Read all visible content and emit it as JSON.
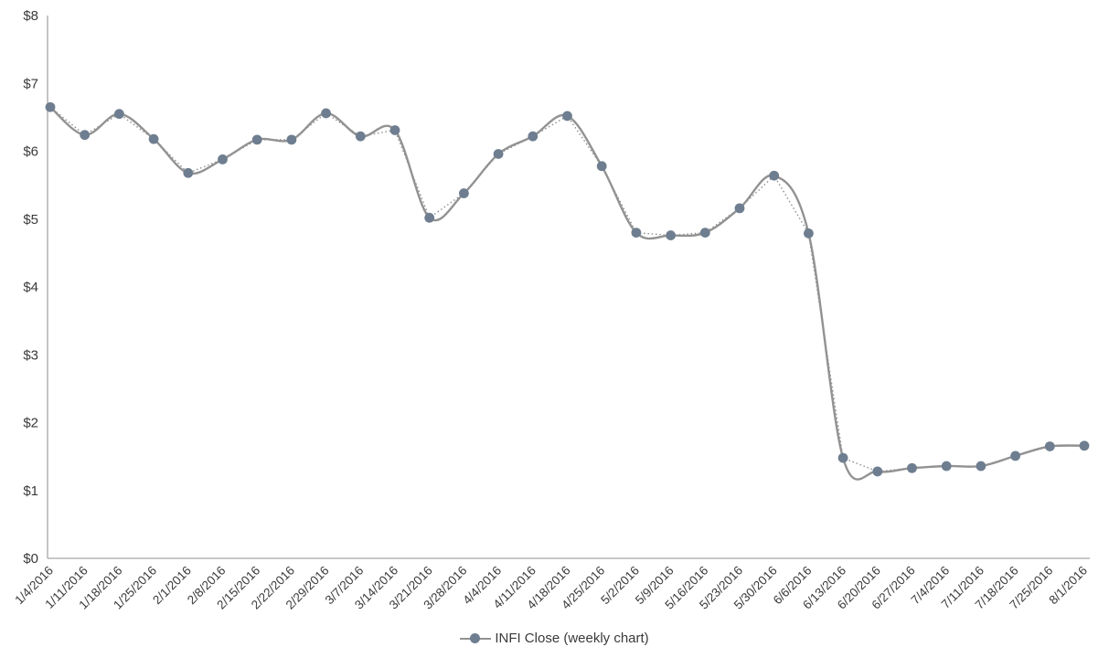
{
  "legend": {
    "label": "INFI Close (weekly chart)"
  },
  "colors": {
    "marker": "#6e7e90",
    "line": "#929292",
    "dotted_line": "#8f8f8f",
    "axis": "#a6a6a6",
    "text": "#3a3a3a",
    "background": "#ffffff"
  },
  "chart_data": {
    "type": "line",
    "title": "",
    "xlabel": "",
    "ylabel": "",
    "ylim": [
      0,
      8
    ],
    "yticks": [
      0,
      1,
      2,
      3,
      4,
      5,
      6,
      7,
      8
    ],
    "ytick_labels": [
      "$0",
      "$1",
      "$2",
      "$3",
      "$4",
      "$5",
      "$6",
      "$7",
      "$8"
    ],
    "grid": false,
    "smooth": true,
    "marker": "circle",
    "legend_position": "bottom-center",
    "x": [
      "1/4/2016",
      "1/11/2016",
      "1/18/2016",
      "1/25/2016",
      "2/1/2016",
      "2/8/2016",
      "2/15/2016",
      "2/22/2016",
      "2/29/2016",
      "3/7/2016",
      "3/14/2016",
      "3/21/2016",
      "3/28/2016",
      "4/4/2016",
      "4/11/2016",
      "4/18/2016",
      "4/25/2016",
      "5/2/2016",
      "5/9/2016",
      "5/16/2016",
      "5/23/2016",
      "5/30/2016",
      "6/6/2016",
      "6/13/2016",
      "6/20/2016",
      "6/27/2016",
      "7/4/2016",
      "7/11/2016",
      "7/18/2016",
      "7/25/2016",
      "8/1/2016"
    ],
    "series": [
      {
        "name": "INFI Close (weekly chart)",
        "values": [
          6.65,
          6.24,
          6.55,
          6.18,
          5.68,
          5.88,
          6.17,
          6.17,
          6.56,
          6.22,
          6.31,
          5.02,
          5.38,
          5.96,
          6.22,
          6.52,
          5.78,
          4.8,
          4.76,
          4.8,
          5.16,
          5.64,
          4.79,
          1.48,
          1.28,
          1.33,
          1.36,
          1.36,
          1.51,
          1.65,
          1.66
        ]
      }
    ],
    "overlays": [
      {
        "name": "straight-segment dotted line (same values as series)",
        "style": "dotted"
      }
    ]
  }
}
